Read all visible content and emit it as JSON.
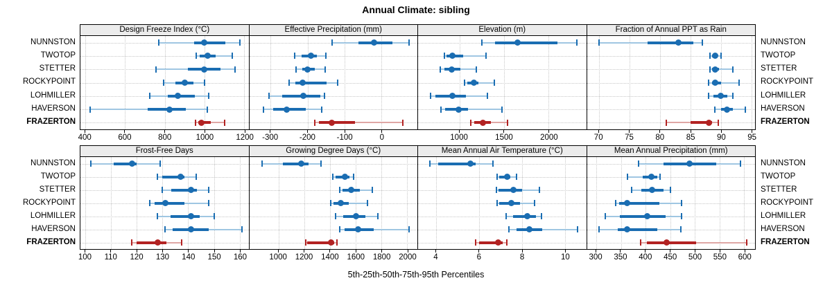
{
  "title": "Annual Climate: sibling",
  "axis_title": "5th-25th-50th-75th-95th Percentiles",
  "colors": {
    "series_blue": "#1a6db2",
    "series_blue_light": "#9fc6e2",
    "highlight_red": "#b22222",
    "highlight_red_light": "#dfa6a4",
    "strip_bg": "#ececec",
    "grid": "#c6c6c6",
    "border": "#000000"
  },
  "chart_data": {
    "type": "dotplot-percentile-trellis",
    "layout": "2 rows x 4 columns of panels, stations on y axis, mirrored station labels left and right",
    "percentiles": [
      5,
      25,
      50,
      75,
      95
    ],
    "stations": [
      {
        "name": "NUNNSTON",
        "emphasis": false
      },
      {
        "name": "TWOTOP",
        "emphasis": false
      },
      {
        "name": "STETTER",
        "emphasis": false
      },
      {
        "name": "ROCKYPOINT",
        "emphasis": false
      },
      {
        "name": "LOHMILLER",
        "emphasis": false
      },
      {
        "name": "HAVERSON",
        "emphasis": false
      },
      {
        "name": "FRAZERTON",
        "emphasis": true
      }
    ],
    "panels": [
      {
        "title": "Design Freeze Index (°C)",
        "xlim": [
          375,
          1222
        ],
        "ticks": [
          400,
          600,
          800,
          1000,
          1200
        ],
        "values": [
          [
            770,
            948,
            1000,
            1105,
            1180
          ],
          [
            960,
            975,
            1015,
            1057,
            1140
          ],
          [
            755,
            915,
            1000,
            1080,
            1155
          ],
          [
            795,
            855,
            900,
            945,
            1000
          ],
          [
            725,
            815,
            865,
            950,
            1020
          ],
          [
            425,
            715,
            825,
            905,
            1015
          ],
          [
            955,
            970,
            985,
            1032,
            1100
          ]
        ]
      },
      {
        "title": "Effective Precipitation (mm)",
        "xlim": [
          -358,
          97
        ],
        "ticks": [
          -300,
          -200,
          -100,
          0
        ],
        "values": [
          [
            -134,
            -63,
            -20,
            30,
            74
          ],
          [
            -235,
            -216,
            -191,
            -175,
            -150
          ],
          [
            -232,
            -215,
            -200,
            -181,
            -152
          ],
          [
            -250,
            -233,
            -213,
            -148,
            -119
          ],
          [
            -305,
            -268,
            -212,
            -165,
            -154
          ],
          [
            -320,
            -294,
            -257,
            -205,
            -162
          ],
          [
            -181,
            -170,
            -135,
            -71,
            57
          ]
        ]
      },
      {
        "title": "Elevation (m)",
        "xlim": [
          537,
          2421
        ],
        "ticks": [
          1000,
          1500,
          2000
        ],
        "values": [
          [
            1250,
            1400,
            1655,
            2100,
            2320
          ],
          [
            830,
            857,
            920,
            1045,
            1295
          ],
          [
            785,
            835,
            910,
            1010,
            1190
          ],
          [
            1055,
            1092,
            1165,
            1215,
            1390
          ],
          [
            675,
            735,
            925,
            1070,
            1315
          ],
          [
            790,
            838,
            995,
            1100,
            1480
          ],
          [
            1130,
            1170,
            1260,
            1355,
            1540
          ]
        ]
      },
      {
        "title": "Fraction of Annual PPT as Rain",
        "xlim": [
          68,
          95.6
        ],
        "ticks": [
          70,
          75,
          80,
          85,
          90,
          95
        ],
        "values": [
          [
            70,
            78,
            83,
            85.5,
            87
          ],
          [
            88.2,
            88.5,
            89,
            89.5,
            90
          ],
          [
            88.2,
            88.5,
            89,
            89.7,
            92
          ],
          [
            88,
            88.5,
            89,
            90,
            93
          ],
          [
            88,
            88.8,
            90,
            91,
            92
          ],
          [
            89,
            90,
            91,
            92,
            94
          ],
          [
            81,
            85,
            88,
            88.5,
            89.6
          ]
        ]
      },
      {
        "title": "Frost-Free Days",
        "xlim": [
          98,
          163.5
        ],
        "ticks": [
          100,
          110,
          120,
          130,
          140,
          150,
          160
        ],
        "values": [
          [
            102,
            111,
            118,
            120,
            129
          ],
          [
            128,
            130,
            137,
            138.5,
            143
          ],
          [
            130,
            133.5,
            141,
            143.5,
            148
          ],
          [
            125,
            127,
            131,
            138.5,
            148
          ],
          [
            128,
            133,
            141,
            144.5,
            150
          ],
          [
            131,
            134,
            141,
            148,
            161
          ],
          [
            118,
            120,
            128,
            131.5,
            137.5
          ]
        ]
      },
      {
        "title": "Growing Degree Days (°C)",
        "xlim": [
          772,
          2080
        ],
        "ticks": [
          1000,
          1200,
          1400,
          1600,
          1800,
          2000
        ],
        "values": [
          [
            870,
            1035,
            1175,
            1235,
            1330
          ],
          [
            1420,
            1445,
            1515,
            1550,
            1585
          ],
          [
            1475,
            1495,
            1565,
            1630,
            1730
          ],
          [
            1405,
            1425,
            1485,
            1545,
            1690
          ],
          [
            1445,
            1505,
            1600,
            1675,
            1775
          ],
          [
            1475,
            1515,
            1620,
            1740,
            2015
          ],
          [
            1210,
            1225,
            1410,
            1432,
            1455
          ]
        ]
      },
      {
        "title": "Mean Annual Air Temperature (°C)",
        "xlim": [
          3.15,
          11.0
        ],
        "ticks": [
          4,
          6,
          8,
          10
        ],
        "values": [
          [
            3.7,
            4.1,
            5.6,
            5.85,
            6.65
          ],
          [
            6.85,
            6.95,
            7.3,
            7.45,
            7.75
          ],
          [
            6.8,
            6.9,
            7.6,
            8.0,
            8.8
          ],
          [
            6.85,
            6.95,
            7.5,
            7.9,
            8.6
          ],
          [
            7.25,
            7.6,
            8.25,
            8.65,
            8.9
          ],
          [
            7.4,
            7.75,
            8.35,
            8.95,
            10.6
          ],
          [
            5.85,
            6.0,
            6.9,
            7.1,
            7.3
          ]
        ]
      },
      {
        "title": "Mean Annual Precipitation (mm)",
        "xlim": [
          281,
          622
        ],
        "ticks": [
          300,
          350,
          400,
          450,
          500,
          550,
          600
        ],
        "values": [
          [
            386,
            436,
            489,
            543,
            592
          ],
          [
            363,
            394,
            412,
            424,
            430
          ],
          [
            372,
            392,
            413,
            437,
            451
          ],
          [
            339,
            346,
            363,
            428,
            473
          ],
          [
            318,
            348,
            403,
            441,
            473
          ],
          [
            306,
            343,
            363,
            424,
            471
          ],
          [
            390,
            402,
            443,
            503,
            605
          ]
        ]
      }
    ]
  }
}
